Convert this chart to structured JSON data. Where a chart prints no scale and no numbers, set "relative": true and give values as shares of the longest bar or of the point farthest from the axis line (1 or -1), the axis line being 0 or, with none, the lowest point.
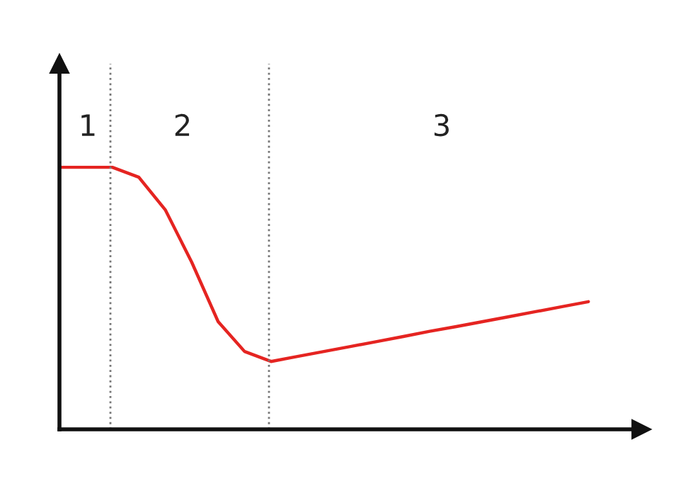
{
  "chart_data": {
    "type": "line",
    "relative": true,
    "tick_labels": false,
    "categories": [
      null,
      null,
      null,
      null,
      null,
      null,
      null,
      null,
      null,
      null,
      null,
      null,
      null,
      null,
      null,
      null,
      null,
      null,
      null,
      null,
      null
    ],
    "series": [
      {
        "color": "#e52421",
        "values": [
          1.0,
          1.0,
          1.0,
          0.962,
          0.838,
          0.638,
          0.411,
          0.297,
          0.259,
          0.278,
          0.297,
          0.316,
          0.335,
          0.354,
          0.374,
          0.392,
          0.411,
          0.43,
          0.449,
          0.468,
          0.487
        ]
      }
    ],
    "annotations": [
      "1",
      "2",
      "3"
    ]
  }
}
